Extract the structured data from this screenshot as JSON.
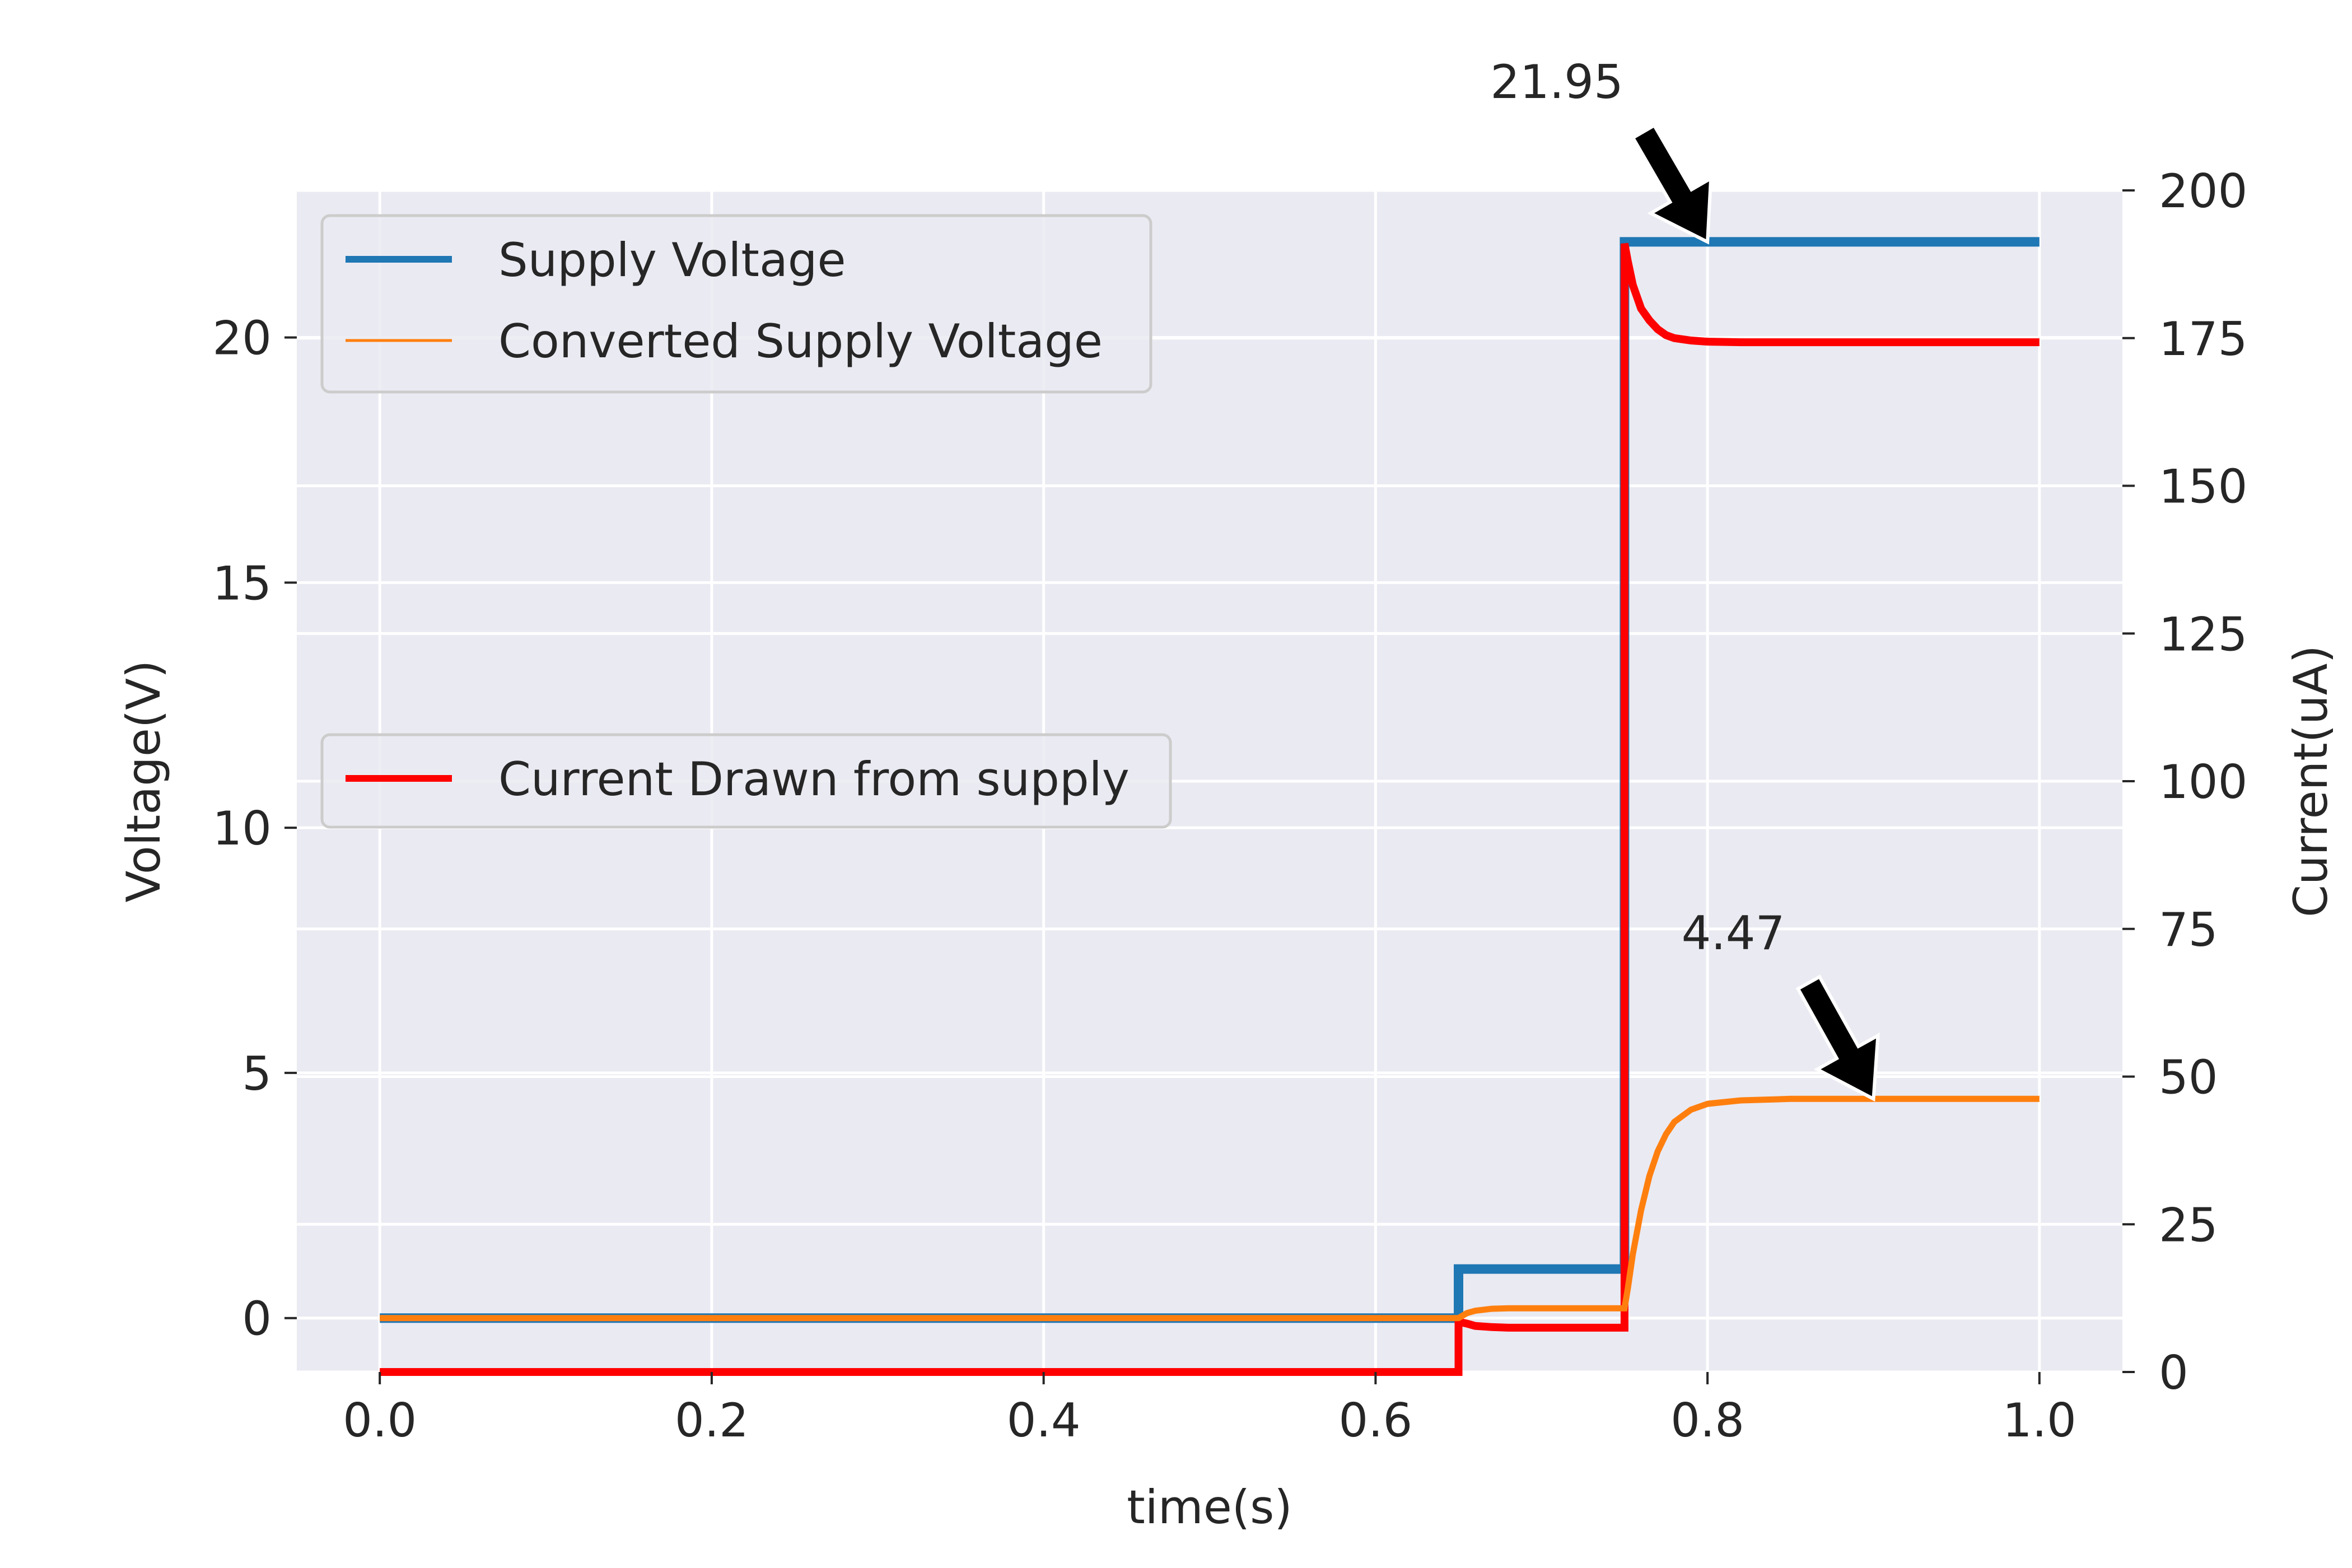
{
  "chart_data": {
    "type": "line",
    "title": "",
    "xlabel": "time(s)",
    "ylabel": "Voltage(V)",
    "y2label": "Current(uA)",
    "xlim": [
      -0.05,
      1.05
    ],
    "ylim": [
      -1.1,
      23.0
    ],
    "y2lim": [
      0,
      200
    ],
    "xticks": [
      0.0,
      0.2,
      0.4,
      0.6,
      0.8,
      1.0
    ],
    "xtick_labels": [
      "0.0",
      "0.2",
      "0.4",
      "0.6",
      "0.8",
      "1.0"
    ],
    "yticks": [
      0,
      5,
      10,
      15,
      20
    ],
    "ytick_labels": [
      "0",
      "5",
      "10",
      "15",
      "20"
    ],
    "y2ticks": [
      0,
      25,
      50,
      75,
      100,
      125,
      150,
      175,
      200
    ],
    "y2tick_labels": [
      "0",
      "25",
      "50",
      "75",
      "100",
      "125",
      "150",
      "175",
      "200"
    ],
    "grid": true,
    "background": "#eaeaf2",
    "series": [
      {
        "name": "Supply Voltage",
        "axis": "left",
        "color": "#1f77b4",
        "x": [
          0.0,
          0.65,
          0.65,
          0.75,
          0.75,
          1.0
        ],
        "y": [
          0.0,
          0.0,
          1.0,
          1.0,
          21.95,
          21.95
        ]
      },
      {
        "name": "Converted Supply Voltage",
        "axis": "left",
        "color": "#ff7f0e",
        "x": [
          0.0,
          0.65,
          0.655,
          0.66,
          0.67,
          0.68,
          0.7,
          0.75,
          0.752,
          0.755,
          0.76,
          0.765,
          0.77,
          0.775,
          0.78,
          0.79,
          0.8,
          0.82,
          0.85,
          0.9,
          1.0
        ],
        "y": [
          0.0,
          0.0,
          0.1,
          0.15,
          0.19,
          0.2,
          0.2,
          0.2,
          0.6,
          1.3,
          2.2,
          2.9,
          3.4,
          3.75,
          4.0,
          4.25,
          4.37,
          4.44,
          4.47,
          4.47,
          4.47
        ]
      },
      {
        "name": "Current Drawn from supply",
        "axis": "right",
        "color": "#ff0000",
        "x": [
          0.0,
          0.65,
          0.65,
          0.655,
          0.66,
          0.67,
          0.68,
          0.75,
          0.75,
          0.752,
          0.755,
          0.76,
          0.765,
          0.77,
          0.775,
          0.78,
          0.79,
          0.8,
          0.82,
          0.85,
          1.0
        ],
        "y": [
          0.0,
          0.0,
          8.5,
          8.2,
          7.8,
          7.6,
          7.5,
          7.5,
          191,
          188,
          184,
          180,
          178,
          176.5,
          175.5,
          175,
          174.6,
          174.4,
          174.3,
          174.3,
          174.3
        ]
      }
    ],
    "legends": [
      {
        "placement": "upper-left",
        "entries": [
          "Supply Voltage",
          "Converted Supply Voltage"
        ]
      },
      {
        "placement": "center-left",
        "entries": [
          "Current Drawn from supply"
        ]
      }
    ],
    "annotations": [
      {
        "text": "21.95",
        "x": 0.8,
        "y": 21.95,
        "axis": "left"
      },
      {
        "text": "4.47",
        "x": 0.9,
        "y": 4.47,
        "axis": "left"
      }
    ]
  }
}
